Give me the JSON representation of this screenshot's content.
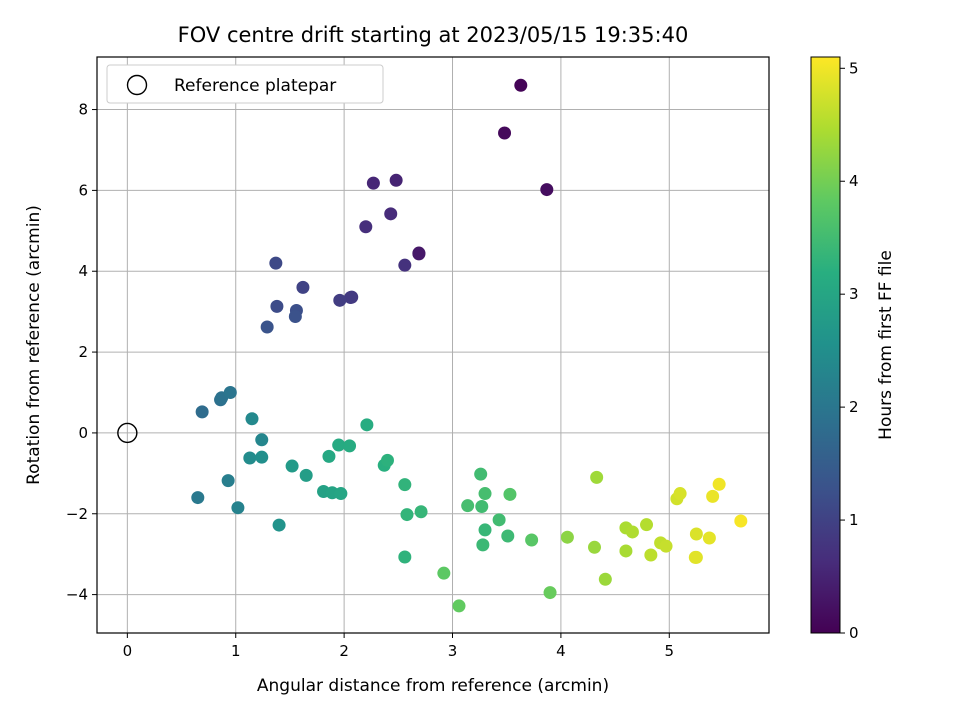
{
  "chart_data": {
    "type": "scatter",
    "title": "FOV centre drift starting at 2023/05/15 19:35:40",
    "xlabel": "Angular distance from reference (arcmin)",
    "ylabel": "Rotation from reference (arcmin)",
    "xlim": [
      -0.28,
      5.92
    ],
    "ylim": [
      -4.95,
      9.3
    ],
    "xticks": [
      0,
      1,
      2,
      3,
      4,
      5
    ],
    "yticks": [
      -4,
      -2,
      0,
      2,
      4,
      6,
      8
    ],
    "grid": true,
    "legend_position": "top-left",
    "legend": {
      "label": "Reference platepar"
    },
    "reference_point": {
      "x": 0,
      "y": 0
    },
    "colorbar": {
      "label": "Hours from first FF file",
      "colormap": "viridis",
      "range": [
        0,
        5.1
      ],
      "ticks": [
        0,
        1,
        2,
        3,
        4,
        5
      ]
    },
    "points": [
      {
        "x": 3.63,
        "y": 8.6,
        "t": 0.05
      },
      {
        "x": 3.48,
        "y": 7.42,
        "t": 0.12
      },
      {
        "x": 3.87,
        "y": 6.02,
        "t": 0.18
      },
      {
        "x": 2.69,
        "y": 4.45,
        "t": 0.3
      },
      {
        "x": 2.69,
        "y": 4.43,
        "t": 0.34
      },
      {
        "x": 2.48,
        "y": 6.25,
        "t": 0.5
      },
      {
        "x": 2.27,
        "y": 6.18,
        "t": 0.55
      },
      {
        "x": 2.43,
        "y": 5.42,
        "t": 0.62
      },
      {
        "x": 2.2,
        "y": 5.1,
        "t": 0.68
      },
      {
        "x": 2.56,
        "y": 4.15,
        "t": 0.72
      },
      {
        "x": 2.07,
        "y": 3.36,
        "t": 0.82
      },
      {
        "x": 2.06,
        "y": 3.35,
        "t": 0.86
      },
      {
        "x": 1.96,
        "y": 3.28,
        "t": 0.92
      },
      {
        "x": 1.62,
        "y": 3.6,
        "t": 1.02
      },
      {
        "x": 1.37,
        "y": 4.2,
        "t": 1.12
      },
      {
        "x": 1.38,
        "y": 3.13,
        "t": 1.18
      },
      {
        "x": 1.56,
        "y": 3.03,
        "t": 1.22
      },
      {
        "x": 1.55,
        "y": 2.88,
        "t": 1.28
      },
      {
        "x": 1.29,
        "y": 2.62,
        "t": 1.32
      },
      {
        "x": 0.69,
        "y": 0.52,
        "t": 1.8
      },
      {
        "x": 0.86,
        "y": 0.82,
        "t": 1.88
      },
      {
        "x": 0.87,
        "y": 0.87,
        "t": 1.92
      },
      {
        "x": 0.95,
        "y": 1.0,
        "t": 1.98
      },
      {
        "x": 0.65,
        "y": -1.6,
        "t": 2.05
      },
      {
        "x": 0.93,
        "y": -1.18,
        "t": 2.15
      },
      {
        "x": 1.02,
        "y": -1.85,
        "t": 2.25
      },
      {
        "x": 1.24,
        "y": -0.17,
        "t": 2.32
      },
      {
        "x": 1.15,
        "y": 0.35,
        "t": 2.38
      },
      {
        "x": 1.13,
        "y": -0.62,
        "t": 2.45
      },
      {
        "x": 1.24,
        "y": -0.6,
        "t": 2.5
      },
      {
        "x": 1.4,
        "y": -2.28,
        "t": 2.6
      },
      {
        "x": 1.52,
        "y": -0.82,
        "t": 2.75
      },
      {
        "x": 1.65,
        "y": -1.05,
        "t": 2.82
      },
      {
        "x": 1.81,
        "y": -1.45,
        "t": 2.9
      },
      {
        "x": 1.89,
        "y": -1.48,
        "t": 2.95
      },
      {
        "x": 1.97,
        "y": -1.5,
        "t": 3.0
      },
      {
        "x": 1.86,
        "y": -0.58,
        "t": 3.05
      },
      {
        "x": 1.95,
        "y": -0.3,
        "t": 3.1
      },
      {
        "x": 2.05,
        "y": -0.32,
        "t": 3.12
      },
      {
        "x": 2.21,
        "y": 0.2,
        "t": 3.15
      },
      {
        "x": 2.37,
        "y": -0.8,
        "t": 3.2
      },
      {
        "x": 2.4,
        "y": -0.68,
        "t": 3.25
      },
      {
        "x": 2.56,
        "y": -1.28,
        "t": 3.3
      },
      {
        "x": 2.58,
        "y": -2.02,
        "t": 3.32
      },
      {
        "x": 2.71,
        "y": -1.95,
        "t": 3.36
      },
      {
        "x": 2.56,
        "y": -3.07,
        "t": 3.28
      },
      {
        "x": 3.26,
        "y": -1.02,
        "t": 3.5
      },
      {
        "x": 3.14,
        "y": -1.8,
        "t": 3.55
      },
      {
        "x": 3.27,
        "y": -1.82,
        "t": 3.5
      },
      {
        "x": 3.3,
        "y": -1.5,
        "t": 3.55
      },
      {
        "x": 3.3,
        "y": -2.4,
        "t": 3.38
      },
      {
        "x": 3.28,
        "y": -2.77,
        "t": 3.42
      },
      {
        "x": 3.43,
        "y": -2.15,
        "t": 3.5
      },
      {
        "x": 3.51,
        "y": -2.55,
        "t": 3.45
      },
      {
        "x": 3.53,
        "y": -1.52,
        "t": 3.7
      },
      {
        "x": 3.73,
        "y": -2.65,
        "t": 3.75
      },
      {
        "x": 2.92,
        "y": -3.47,
        "t": 3.8
      },
      {
        "x": 3.06,
        "y": -4.28,
        "t": 3.85
      },
      {
        "x": 3.9,
        "y": -3.95,
        "t": 3.9
      },
      {
        "x": 4.06,
        "y": -2.58,
        "t": 4.2
      },
      {
        "x": 4.31,
        "y": -2.83,
        "t": 4.3
      },
      {
        "x": 4.33,
        "y": -1.1,
        "t": 4.35
      },
      {
        "x": 4.41,
        "y": -3.62,
        "t": 4.32
      },
      {
        "x": 4.6,
        "y": -2.35,
        "t": 4.45
      },
      {
        "x": 4.6,
        "y": -2.92,
        "t": 4.42
      },
      {
        "x": 4.66,
        "y": -2.45,
        "t": 4.48
      },
      {
        "x": 4.79,
        "y": -2.27,
        "t": 4.52
      },
      {
        "x": 4.83,
        "y": -3.02,
        "t": 4.58
      },
      {
        "x": 4.92,
        "y": -2.72,
        "t": 4.62
      },
      {
        "x": 4.97,
        "y": -2.8,
        "t": 4.66
      },
      {
        "x": 5.07,
        "y": -1.63,
        "t": 4.75
      },
      {
        "x": 5.1,
        "y": -1.5,
        "t": 4.8
      },
      {
        "x": 5.25,
        "y": -2.5,
        "t": 4.82
      },
      {
        "x": 5.25,
        "y": -3.08,
        "t": 4.86
      },
      {
        "x": 5.24,
        "y": -3.08,
        "t": 4.88
      },
      {
        "x": 5.37,
        "y": -2.6,
        "t": 4.9
      },
      {
        "x": 5.4,
        "y": -1.57,
        "t": 4.95
      },
      {
        "x": 5.46,
        "y": -1.27,
        "t": 5.0
      },
      {
        "x": 5.66,
        "y": -2.18,
        "t": 5.05
      }
    ]
  }
}
